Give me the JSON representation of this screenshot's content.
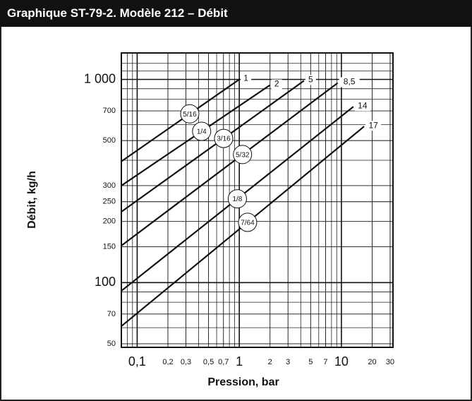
{
  "chart_data": {
    "type": "line",
    "title": "Graphique ST-79-2. Modèle 212 – Débit",
    "x_label": "Pression, bar",
    "y_label": "Débit, kg/h",
    "log_x": true,
    "log_y": true,
    "grid": true,
    "xlim": [
      0.07,
      32
    ],
    "ylim": [
      48,
      1350
    ],
    "xticks": [
      {
        "value": 0.1,
        "label": "0,1"
      },
      {
        "value": 0.2,
        "label": "0,2"
      },
      {
        "value": 0.3,
        "label": "0,3"
      },
      {
        "value": 0.5,
        "label": "0,5"
      },
      {
        "value": 0.7,
        "label": "0,7"
      },
      1,
      2,
      3,
      5,
      7,
      10,
      20,
      30
    ],
    "yticks": [
      50,
      70,
      100,
      150,
      200,
      250,
      300,
      500,
      700,
      {
        "value": 1000,
        "label": "1 000"
      }
    ],
    "xgrid_minor": [
      0.08,
      0.09,
      0.4,
      0.6,
      0.8,
      0.9,
      4,
      6,
      8,
      9
    ],
    "ygrid_minor": [
      60,
      80,
      90,
      400,
      600,
      800,
      900,
      1100,
      1200
    ],
    "series": [
      {
        "name": "1",
        "orifice": "5/16",
        "color": "#111111",
        "x": [
          0.07,
          1.0
        ],
        "values": [
          395,
          1000
        ]
      },
      {
        "name": "2",
        "orifice": "1/4",
        "color": "#111111",
        "x": [
          0.07,
          2.0
        ],
        "values": [
          300,
          938
        ]
      },
      {
        "name": "5",
        "orifice": "3/16",
        "color": "#111111",
        "x": [
          0.07,
          4.3
        ],
        "values": [
          223,
          985
        ]
      },
      {
        "name": "8,5",
        "orifice": "5/32",
        "color": "#111111",
        "x": [
          0.07,
          9.2
        ],
        "values": [
          152,
          961
        ]
      },
      {
        "name": "14",
        "orifice": "1/8",
        "color": "#111111",
        "x": [
          0.07,
          13.1
        ],
        "values": [
          91,
          734
        ]
      },
      {
        "name": "17",
        "orifice": "7/64",
        "color": "#111111",
        "x": [
          0.07,
          16.7
        ],
        "values": [
          61,
          587
        ]
      }
    ]
  }
}
